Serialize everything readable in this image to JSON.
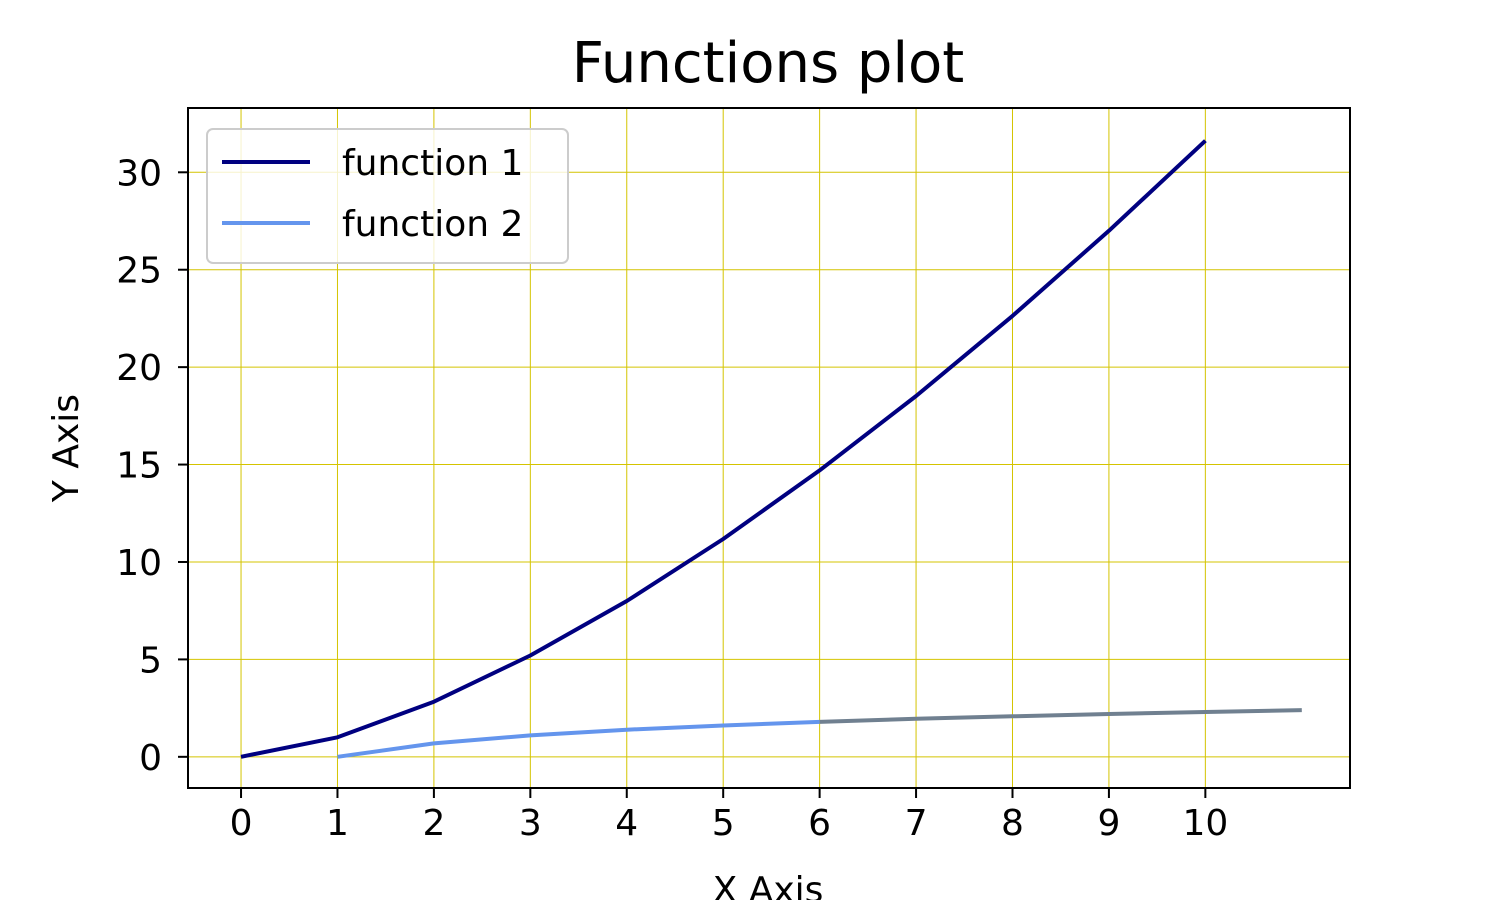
{
  "chart_data": {
    "type": "line",
    "title": "Functions plot",
    "xlabel": "X Axis",
    "ylabel": "Y Axis",
    "xlim": [
      -0.55,
      11.5
    ],
    "ylim": [
      -1.6,
      33.3
    ],
    "xticks": [
      0,
      1,
      2,
      3,
      4,
      5,
      6,
      7,
      8,
      9,
      10
    ],
    "yticks": [
      0,
      5,
      10,
      15,
      20,
      25,
      30
    ],
    "grid": true,
    "grid_color": "#d4c400",
    "legend_position": "upper-left",
    "series": [
      {
        "name": "function 1",
        "color": "#000080",
        "x": [
          0,
          1,
          2,
          3,
          4,
          5,
          6,
          7,
          8,
          9,
          10
        ],
        "y": [
          0,
          1.0,
          2.83,
          5.2,
          8.0,
          11.18,
          14.7,
          18.52,
          22.63,
          27.0,
          31.62
        ]
      },
      {
        "name": "function 2",
        "color": "#6495ed",
        "x": [
          1,
          2,
          3,
          4,
          5,
          6
        ],
        "y": [
          0,
          0.69,
          1.1,
          1.39,
          1.61,
          1.79
        ]
      },
      {
        "name": "",
        "color": "#708090",
        "x": [
          6,
          7,
          8,
          9,
          10,
          11
        ],
        "y": [
          1.79,
          1.95,
          2.08,
          2.2,
          2.3,
          2.4
        ]
      }
    ]
  }
}
